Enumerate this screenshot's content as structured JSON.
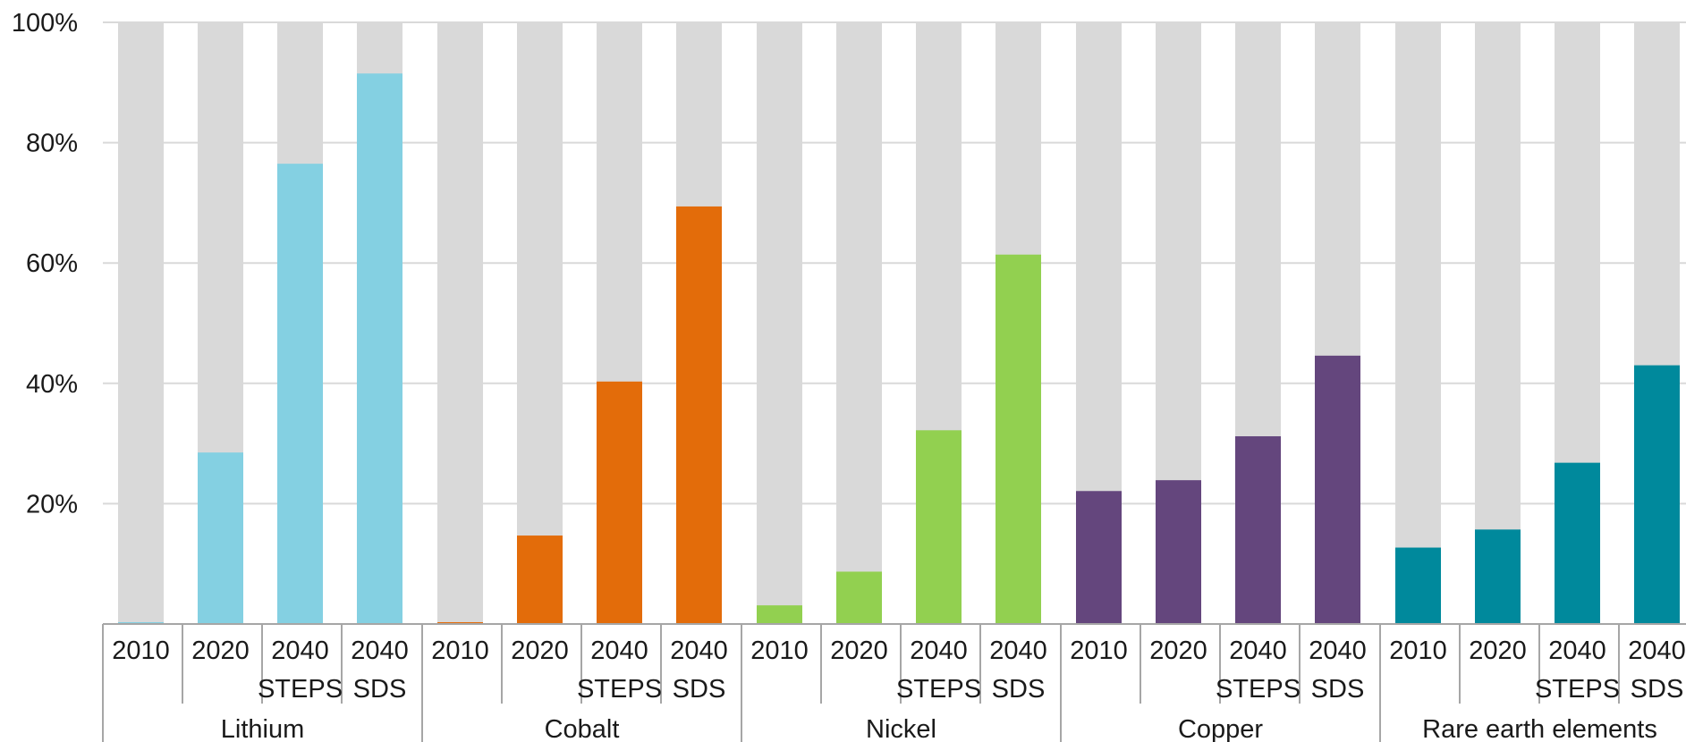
{
  "chart_data": {
    "type": "bar",
    "stacked": true,
    "title": "",
    "xlabel": "",
    "ylabel": "",
    "ylim": [
      0,
      100
    ],
    "y_ticks": [
      "20%",
      "40%",
      "60%",
      "80%",
      "100%"
    ],
    "y_tick_values": [
      20,
      40,
      60,
      80,
      100
    ],
    "grid": true,
    "legend": "none",
    "background_color": "#d9d9d9",
    "groups": [
      {
        "name": "Lithium",
        "color": "#84d0e2",
        "bars": [
          {
            "label": [
              "2010"
            ],
            "value": 0.3
          },
          {
            "label": [
              "2020"
            ],
            "value": 28.5
          },
          {
            "label": [
              "2040",
              "STEPS"
            ],
            "value": 76.5
          },
          {
            "label": [
              "2040",
              "SDS"
            ],
            "value": 91.5
          }
        ]
      },
      {
        "name": "Cobalt",
        "color": "#e36c0a",
        "bars": [
          {
            "label": [
              "2010"
            ],
            "value": 0.3
          },
          {
            "label": [
              "2020"
            ],
            "value": 14.7
          },
          {
            "label": [
              "2040",
              "STEPS"
            ],
            "value": 40.3
          },
          {
            "label": [
              "2040",
              "SDS"
            ],
            "value": 69.4
          }
        ]
      },
      {
        "name": "Nickel",
        "color": "#92d050",
        "bars": [
          {
            "label": [
              "2010"
            ],
            "value": 3.1
          },
          {
            "label": [
              "2020"
            ],
            "value": 8.7
          },
          {
            "label": [
              "2040",
              "STEPS"
            ],
            "value": 32.2
          },
          {
            "label": [
              "2040",
              "SDS"
            ],
            "value": 61.4
          }
        ]
      },
      {
        "name": "Copper",
        "color": "#64467d",
        "bars": [
          {
            "label": [
              "2010"
            ],
            "value": 22.1
          },
          {
            "label": [
              "2020"
            ],
            "value": 23.9
          },
          {
            "label": [
              "2040",
              "STEPS"
            ],
            "value": 31.2
          },
          {
            "label": [
              "2040",
              "SDS"
            ],
            "value": 44.6
          }
        ]
      },
      {
        "name": "Rare earth elements",
        "color": "#00899c",
        "bars": [
          {
            "label": [
              "2010"
            ],
            "value": 12.7
          },
          {
            "label": [
              "2020"
            ],
            "value": 15.7
          },
          {
            "label": [
              "2040",
              "STEPS"
            ],
            "value": 26.8
          },
          {
            "label": [
              "2040",
              "SDS"
            ],
            "value": 43.0
          }
        ]
      }
    ]
  }
}
